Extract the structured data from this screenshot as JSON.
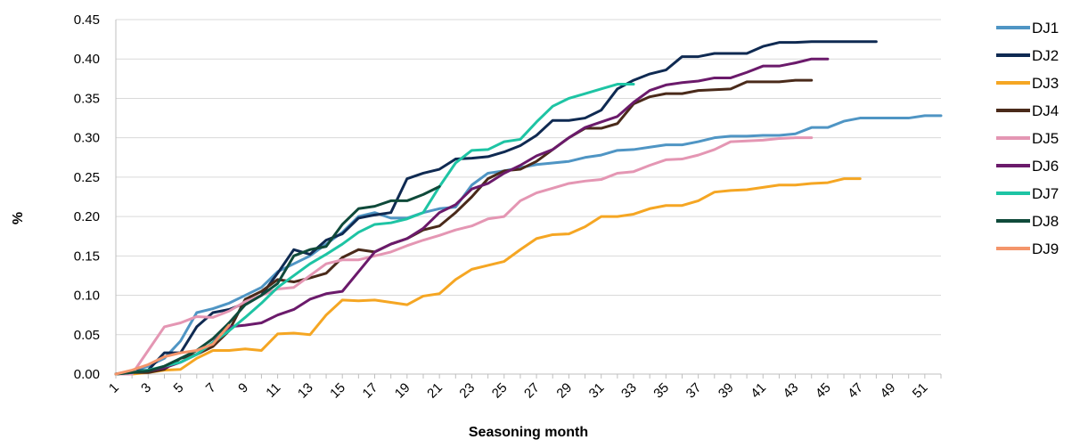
{
  "chart_data": {
    "type": "line",
    "title": "",
    "xlabel": "Seasoning month",
    "ylabel": "%",
    "xlim": [
      1,
      52
    ],
    "ylim": [
      0,
      0.45
    ],
    "grid": true,
    "legend_position": "right",
    "y_ticks": [
      "0.00",
      "0.05",
      "0.10",
      "0.15",
      "0.20",
      "0.25",
      "0.30",
      "0.35",
      "0.40",
      "0.45"
    ],
    "x_ticks": [
      "1",
      "3",
      "5",
      "7",
      "9",
      "11",
      "13",
      "15",
      "17",
      "19",
      "21",
      "23",
      "25",
      "27",
      "29",
      "31",
      "33",
      "35",
      "37",
      "39",
      "41",
      "43",
      "45",
      "47",
      "49",
      "51"
    ],
    "series": [
      {
        "name": "DJ1",
        "color": "#4f95c4",
        "values": [
          0.0,
          0.004,
          0.01,
          0.02,
          0.042,
          0.078,
          0.083,
          0.09,
          0.1,
          0.11,
          0.13,
          0.14,
          0.15,
          0.165,
          0.18,
          0.2,
          0.205,
          0.198,
          0.198,
          0.205,
          0.21,
          0.212,
          0.24,
          0.255,
          0.258,
          0.262,
          0.266,
          0.268,
          0.27,
          0.275,
          0.278,
          0.284,
          0.285,
          0.288,
          0.291,
          0.291,
          0.295,
          0.3,
          0.302,
          0.302,
          0.303,
          0.303,
          0.305,
          0.313,
          0.313,
          0.321,
          0.325,
          0.325,
          0.325,
          0.325,
          0.328,
          0.328
        ]
      },
      {
        "name": "DJ2",
        "color": "#0f2a52",
        "values": [
          0.0,
          0.004,
          0.005,
          0.027,
          0.027,
          0.06,
          0.078,
          0.082,
          0.09,
          0.1,
          0.128,
          0.158,
          0.152,
          0.17,
          0.178,
          0.198,
          0.202,
          0.205,
          0.248,
          0.255,
          0.26,
          0.273,
          0.274,
          0.276,
          0.282,
          0.29,
          0.303,
          0.322,
          0.322,
          0.325,
          0.335,
          0.362,
          0.373,
          0.381,
          0.386,
          0.403,
          0.403,
          0.407,
          0.407,
          0.407,
          0.416,
          0.421,
          0.421,
          0.422,
          0.422,
          0.422,
          0.422,
          0.422
        ]
      },
      {
        "name": "DJ3",
        "color": "#f5a623",
        "values": [
          0.0,
          0.0,
          0.002,
          0.005,
          0.006,
          0.02,
          0.03,
          0.03,
          0.032,
          0.03,
          0.051,
          0.052,
          0.05,
          0.075,
          0.094,
          0.093,
          0.094,
          0.091,
          0.088,
          0.099,
          0.102,
          0.12,
          0.133,
          0.138,
          0.143,
          0.158,
          0.172,
          0.177,
          0.178,
          0.187,
          0.2,
          0.2,
          0.203,
          0.21,
          0.214,
          0.214,
          0.22,
          0.231,
          0.233,
          0.234,
          0.237,
          0.24,
          0.24,
          0.242,
          0.243,
          0.248,
          0.248
        ]
      },
      {
        "name": "DJ4",
        "color": "#4a2a1a",
        "values": [
          0.0,
          0.002,
          0.002,
          0.006,
          0.02,
          0.025,
          0.035,
          0.055,
          0.095,
          0.105,
          0.12,
          0.117,
          0.122,
          0.128,
          0.148,
          0.158,
          0.155,
          0.165,
          0.172,
          0.183,
          0.188,
          0.205,
          0.225,
          0.248,
          0.258,
          0.26,
          0.27,
          0.285,
          0.3,
          0.312,
          0.312,
          0.318,
          0.343,
          0.352,
          0.356,
          0.356,
          0.36,
          0.361,
          0.362,
          0.371,
          0.371,
          0.371,
          0.373,
          0.373
        ]
      },
      {
        "name": "DJ5",
        "color": "#e496b3",
        "values": [
          0.0,
          0.0,
          0.03,
          0.06,
          0.065,
          0.073,
          0.072,
          0.08,
          0.092,
          0.1,
          0.108,
          0.11,
          0.125,
          0.14,
          0.145,
          0.145,
          0.15,
          0.155,
          0.163,
          0.17,
          0.176,
          0.183,
          0.188,
          0.197,
          0.2,
          0.22,
          0.23,
          0.236,
          0.242,
          0.245,
          0.247,
          0.255,
          0.257,
          0.265,
          0.272,
          0.273,
          0.278,
          0.285,
          0.295,
          0.296,
          0.297,
          0.299,
          0.3,
          0.3
        ]
      },
      {
        "name": "DJ6",
        "color": "#6b1a6b",
        "values": [
          0.0,
          0.002,
          0.004,
          0.008,
          0.015,
          0.025,
          0.04,
          0.06,
          0.062,
          0.065,
          0.075,
          0.082,
          0.095,
          0.102,
          0.105,
          0.13,
          0.155,
          0.165,
          0.172,
          0.185,
          0.205,
          0.215,
          0.235,
          0.242,
          0.255,
          0.265,
          0.277,
          0.285,
          0.3,
          0.313,
          0.32,
          0.327,
          0.345,
          0.36,
          0.367,
          0.37,
          0.372,
          0.376,
          0.376,
          0.383,
          0.391,
          0.391,
          0.395,
          0.4,
          0.4
        ]
      },
      {
        "name": "DJ7",
        "color": "#1ec4a4",
        "values": [
          0.0,
          0.002,
          0.005,
          0.01,
          0.015,
          0.025,
          0.04,
          0.055,
          0.072,
          0.09,
          0.11,
          0.125,
          0.14,
          0.152,
          0.165,
          0.18,
          0.19,
          0.192,
          0.197,
          0.205,
          0.238,
          0.268,
          0.284,
          0.285,
          0.295,
          0.298,
          0.32,
          0.34,
          0.35,
          0.356,
          0.362,
          0.368,
          0.368
        ]
      },
      {
        "name": "DJ8",
        "color": "#0f4a3a",
        "values": [
          0.0,
          0.002,
          0.004,
          0.01,
          0.02,
          0.03,
          0.045,
          0.065,
          0.088,
          0.1,
          0.115,
          0.15,
          0.158,
          0.162,
          0.19,
          0.21,
          0.213,
          0.22,
          0.22,
          0.228,
          0.238
        ]
      },
      {
        "name": "DJ9",
        "color": "#f4956b",
        "values": [
          0.0,
          0.005,
          0.012,
          0.022,
          0.027,
          0.03,
          0.038,
          0.062
        ]
      }
    ]
  }
}
